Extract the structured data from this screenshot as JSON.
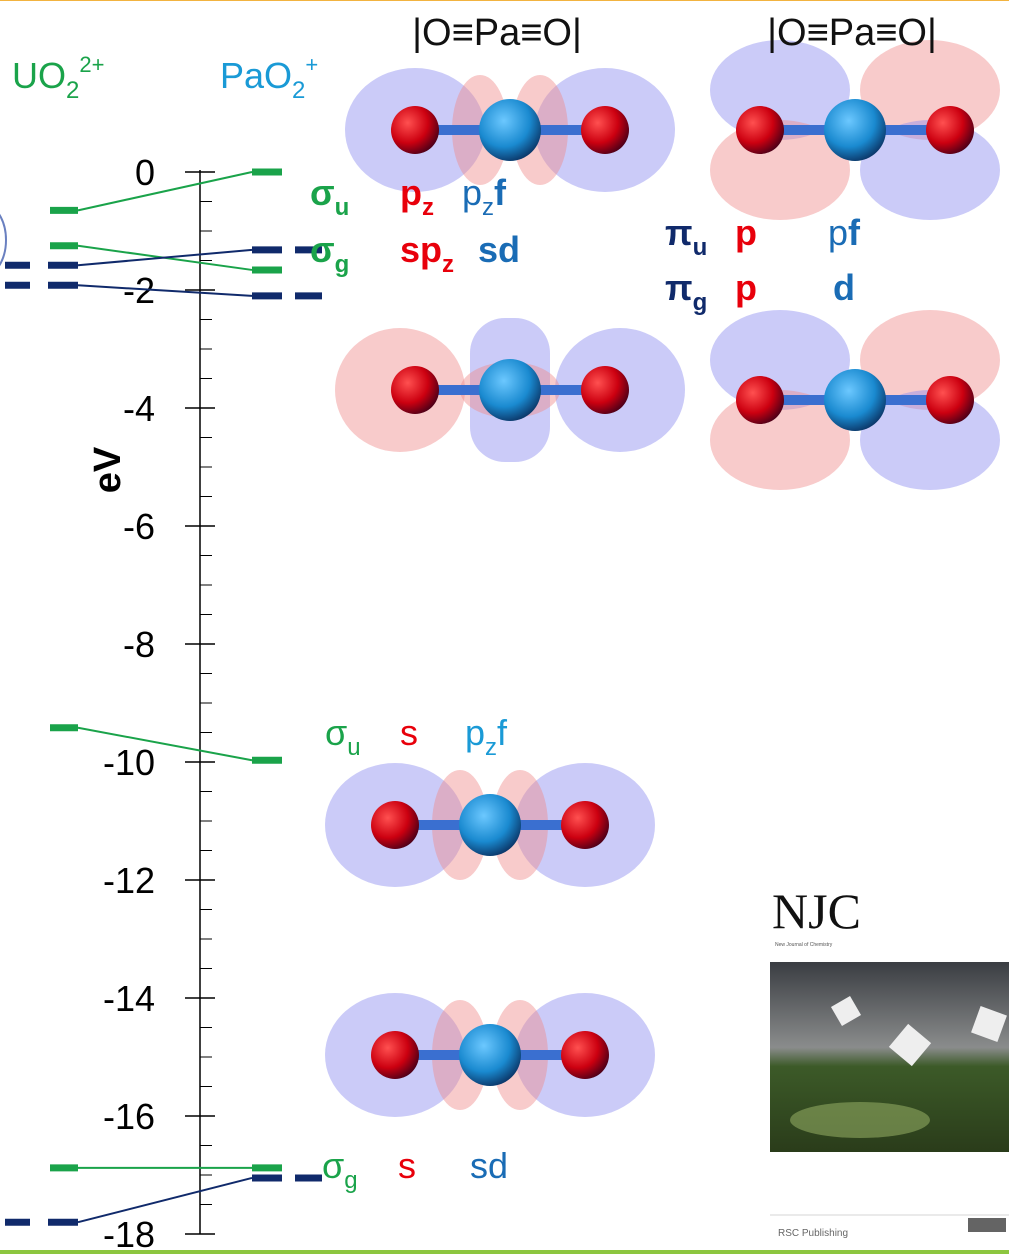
{
  "chart_data": {
    "type": "levels",
    "ylabel": "eV",
    "ylim": [
      0.3,
      -18.3
    ],
    "yticks": [
      0,
      -2,
      -4,
      -6,
      -8,
      -10,
      -12,
      -14,
      -16,
      -18
    ],
    "yminor": [
      -0.5,
      -1,
      -1.5,
      -2.5,
      -3,
      -3.5,
      -4.5,
      -5,
      -5.5,
      -6.5,
      -7,
      -7.5,
      -8.5,
      -9,
      -9.5,
      -10.5,
      -11,
      -11.5,
      -12.5,
      -13,
      -13.5,
      -14.5,
      -15,
      -15.5,
      -16.5,
      -17,
      -17.5
    ],
    "columns": [
      {
        "parts": [
          {
            "text": "UO"
          },
          {
            "text": "2",
            "sub": true
          },
          {
            "text": "2+",
            "sup": true
          }
        ],
        "color": "#1aa34a"
      },
      {
        "parts": [
          {
            "text": "PaO"
          },
          {
            "text": "2",
            "sub": true
          },
          {
            "text": "+",
            "sup": true
          }
        ],
        "color": "#1a9ad6"
      }
    ],
    "series": [
      {
        "color": "#1aa34a",
        "dashed": false,
        "left": [
          -0.65,
          -1.25,
          -9.42,
          -16.88
        ],
        "right": [
          0,
          -1.66,
          -9.97,
          -16.88
        ]
      },
      {
        "color": "#102a6b",
        "dashed": true,
        "left": [
          -1.58,
          -1.92,
          -17.8
        ],
        "right": [
          -1.32,
          -2.1,
          -17.05
        ]
      }
    ],
    "titles": [
      "|O≡Pa≡O|",
      "|O≡Pa≡O|"
    ],
    "labels": [
      {
        "bold": true,
        "groups": [
          [
            {
              "text": "σ",
              "color": "#1aa34a"
            },
            {
              "text": "u",
              "sub": true,
              "color": "#1aa34a"
            }
          ],
          [
            {
              "text": "p",
              "color": "#e8000b"
            },
            {
              "text": "z",
              "sub": true,
              "color": "#e8000b"
            }
          ],
          [
            {
              "text": "p",
              "color": "#1a6cb5",
              "normal": true
            },
            {
              "text": "z",
              "sub": true,
              "color": "#1a6cb5",
              "normal": true
            },
            {
              "text": "f",
              "color": "#1a6cb5"
            }
          ]
        ]
      },
      {
        "bold": true,
        "groups": [
          [
            {
              "text": "σ",
              "color": "#1aa34a"
            },
            {
              "text": "g",
              "sub": true,
              "color": "#1aa34a"
            }
          ],
          [
            {
              "text": "sp",
              "color": "#e8000b"
            },
            {
              "text": "z",
              "sub": true,
              "color": "#e8000b"
            }
          ],
          [
            {
              "text": "sd",
              "color": "#1a6cb5"
            }
          ]
        ]
      },
      {
        "bold": true,
        "groups": [
          [
            {
              "text": "π",
              "color": "#102a6b"
            },
            {
              "text": "u",
              "sub": true,
              "color": "#102a6b"
            }
          ],
          [
            {
              "text": "p",
              "color": "#e8000b"
            }
          ],
          [
            {
              "text": "p",
              "color": "#1a6cb5",
              "normal": true
            },
            {
              "text": "f",
              "color": "#1a6cb5"
            }
          ]
        ]
      },
      {
        "bold": true,
        "groups": [
          [
            {
              "text": "π",
              "color": "#102a6b"
            },
            {
              "text": "g",
              "sub": true,
              "color": "#102a6b"
            }
          ],
          [
            {
              "text": "p",
              "color": "#e8000b"
            }
          ],
          [
            {
              "text": "d",
              "color": "#1a6cb5"
            }
          ]
        ]
      },
      {
        "bold": false,
        "groups": [
          [
            {
              "text": "σ",
              "color": "#1aa34a"
            },
            {
              "text": "u",
              "sub": true,
              "color": "#1aa34a"
            }
          ],
          [
            {
              "text": "s",
              "color": "#e8000b"
            }
          ],
          [
            {
              "text": "p",
              "color": "#1a9ad6"
            },
            {
              "text": "z",
              "sub": true,
              "color": "#1a9ad6"
            },
            {
              "text": "f",
              "color": "#1a9ad6"
            }
          ]
        ]
      },
      {
        "bold": false,
        "groups": [
          [
            {
              "text": "σ",
              "color": "#1aa34a"
            },
            {
              "text": "g",
              "sub": true,
              "color": "#1aa34a"
            }
          ],
          [
            {
              "text": "s",
              "color": "#e8000b"
            }
          ],
          [
            {
              "text": "sd",
              "color": "#1a6cb5"
            }
          ]
        ]
      }
    ],
    "cover": {
      "title": "NJC",
      "journal": "New Journal of Chemistry",
      "publisher": "RSC Publishing"
    }
  }
}
